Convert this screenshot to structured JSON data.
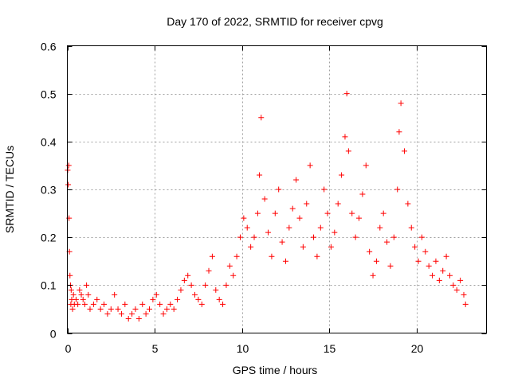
{
  "chart_data": {
    "type": "scatter",
    "title": "Day 170 of 2022, SRMTID for receiver cpvg",
    "xlabel": "GPS time / hours",
    "ylabel": "SRMTID / TECUs",
    "xlim": [
      0,
      24
    ],
    "ylim": [
      0,
      0.6
    ],
    "xticks": [
      0,
      5,
      10,
      15,
      20
    ],
    "xtick_labels": [
      "0",
      "5",
      "10",
      "15",
      "20"
    ],
    "yticks": [
      0,
      0.1,
      0.2,
      0.3,
      0.4,
      0.5,
      0.6
    ],
    "ytick_labels": [
      "0",
      "0.1",
      "0.2",
      "0.3",
      "0.4",
      "0.5",
      "0.6"
    ],
    "grid": true,
    "marker": "+",
    "color": "#ff0000",
    "series": [
      {
        "name": "SRMTID",
        "x": [
          0.02,
          0.05,
          0.08,
          0.1,
          0.12,
          0.15,
          0.18,
          0.2,
          0.22,
          0.25,
          0.3,
          0.35,
          0.4,
          0.5,
          0.6,
          0.7,
          0.8,
          0.9,
          1.0,
          1.1,
          1.2,
          1.3,
          1.5,
          1.7,
          1.9,
          2.1,
          2.3,
          2.5,
          2.7,
          2.9,
          3.1,
          3.3,
          3.5,
          3.7,
          3.9,
          4.1,
          4.3,
          4.5,
          4.7,
          4.9,
          5.1,
          5.3,
          5.5,
          5.7,
          5.9,
          6.1,
          6.3,
          6.5,
          6.7,
          6.9,
          7.1,
          7.3,
          7.5,
          7.7,
          7.9,
          8.1,
          8.3,
          8.5,
          8.7,
          8.9,
          9.1,
          9.3,
          9.5,
          9.7,
          9.9,
          10.1,
          10.3,
          10.5,
          10.7,
          10.9,
          11.0,
          11.1,
          11.3,
          11.5,
          11.7,
          11.9,
          12.1,
          12.3,
          12.5,
          12.7,
          12.9,
          13.1,
          13.3,
          13.5,
          13.7,
          13.9,
          14.1,
          14.3,
          14.5,
          14.7,
          14.9,
          15.1,
          15.3,
          15.5,
          15.7,
          15.9,
          16.0,
          16.1,
          16.3,
          16.5,
          16.7,
          16.9,
          17.1,
          17.3,
          17.5,
          17.7,
          17.9,
          18.1,
          18.3,
          18.5,
          18.7,
          18.9,
          19.0,
          19.1,
          19.3,
          19.5,
          19.7,
          19.9,
          20.1,
          20.3,
          20.5,
          20.7,
          20.9,
          21.1,
          21.3,
          21.5,
          21.7,
          21.9,
          22.1,
          22.3,
          22.5,
          22.7,
          22.8
        ],
        "y": [
          0.34,
          0.31,
          0.35,
          0.24,
          0.17,
          0.12,
          0.1,
          0.06,
          0.09,
          0.07,
          0.05,
          0.08,
          0.06,
          0.07,
          0.06,
          0.09,
          0.08,
          0.07,
          0.06,
          0.1,
          0.08,
          0.05,
          0.06,
          0.07,
          0.05,
          0.06,
          0.04,
          0.05,
          0.08,
          0.05,
          0.04,
          0.06,
          0.03,
          0.04,
          0.05,
          0.03,
          0.06,
          0.04,
          0.05,
          0.07,
          0.08,
          0.06,
          0.04,
          0.05,
          0.06,
          0.05,
          0.07,
          0.09,
          0.11,
          0.12,
          0.1,
          0.08,
          0.07,
          0.06,
          0.1,
          0.13,
          0.16,
          0.09,
          0.07,
          0.06,
          0.1,
          0.14,
          0.12,
          0.16,
          0.2,
          0.24,
          0.22,
          0.18,
          0.2,
          0.25,
          0.33,
          0.45,
          0.28,
          0.21,
          0.16,
          0.25,
          0.3,
          0.19,
          0.15,
          0.22,
          0.26,
          0.32,
          0.24,
          0.18,
          0.27,
          0.35,
          0.2,
          0.16,
          0.22,
          0.3,
          0.25,
          0.18,
          0.21,
          0.27,
          0.33,
          0.41,
          0.5,
          0.38,
          0.25,
          0.2,
          0.24,
          0.29,
          0.35,
          0.17,
          0.12,
          0.15,
          0.22,
          0.25,
          0.19,
          0.14,
          0.2,
          0.3,
          0.42,
          0.48,
          0.38,
          0.27,
          0.22,
          0.18,
          0.15,
          0.2,
          0.17,
          0.14,
          0.12,
          0.15,
          0.11,
          0.13,
          0.16,
          0.12,
          0.1,
          0.09,
          0.11,
          0.08,
          0.06
        ]
      }
    ]
  }
}
